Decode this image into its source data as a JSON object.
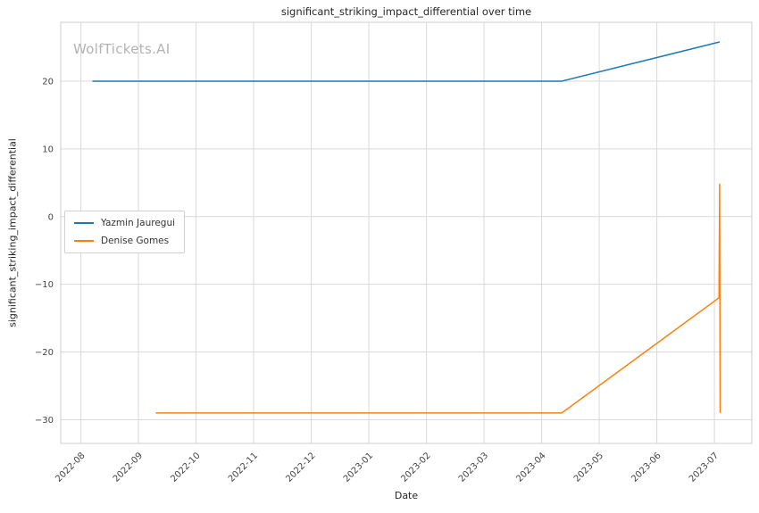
{
  "chart_data": {
    "type": "line",
    "title": "significant_striking_impact_differential over time",
    "xlabel": "Date",
    "ylabel": "significant_striking_impact_differential",
    "watermark": "WolfTickets.AI",
    "x_tick_labels": [
      "2022-08",
      "2022-09",
      "2022-10",
      "2022-11",
      "2022-12",
      "2023-01",
      "2023-02",
      "2023-03",
      "2023-04",
      "2023-05",
      "2023-06",
      "2023-07"
    ],
    "y_ticks": [
      -30,
      -20,
      -10,
      0,
      10,
      20
    ],
    "xlim": [
      -0.35,
      11.65
    ],
    "ylim": [
      -33.5,
      28.7
    ],
    "grid": true,
    "legend_position": "center-left",
    "colors": {
      "grid": "#d9d9d9",
      "axis_border": "#cccccc",
      "text": "#262626",
      "tick_text": "#444444"
    },
    "series": [
      {
        "name": "Yazmin Jauregui",
        "color": "#1f77b4",
        "points": [
          [
            0.2,
            20
          ],
          [
            8.35,
            20
          ],
          [
            11.09,
            25.8
          ]
        ]
      },
      {
        "name": "Denise Gomes",
        "color": "#ff7f0e",
        "points": [
          [
            1.3,
            -29
          ],
          [
            8.35,
            -29
          ],
          [
            11.08,
            -12
          ],
          [
            11.09,
            4.8
          ],
          [
            11.1,
            -29
          ]
        ]
      }
    ]
  }
}
